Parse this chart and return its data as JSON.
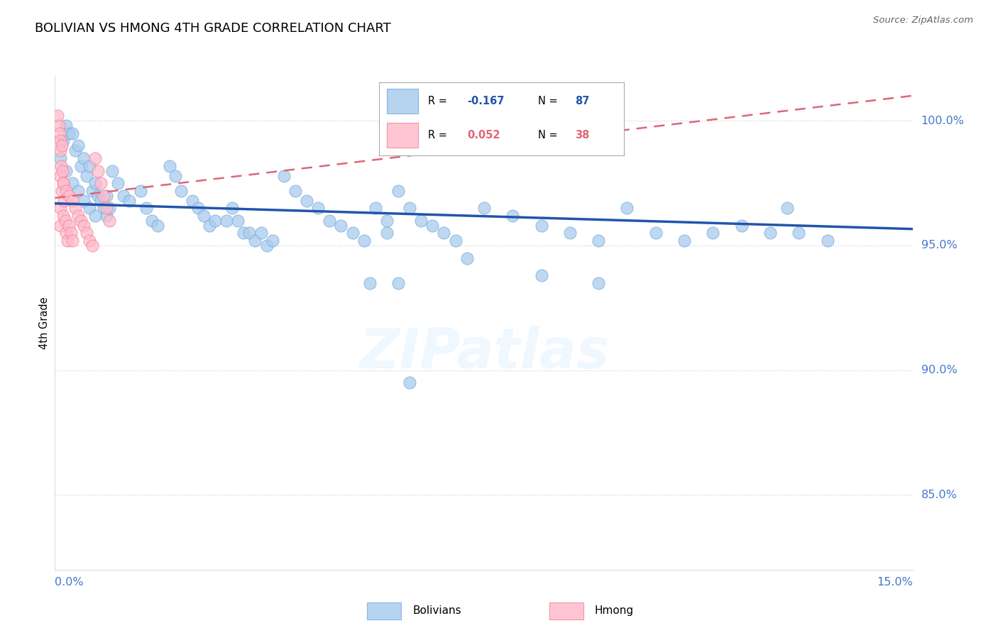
{
  "title": "BOLIVIAN VS HMONG 4TH GRADE CORRELATION CHART",
  "source": "Source: ZipAtlas.com",
  "ylabel": "4th Grade",
  "xlim": [
    0.0,
    15.0
  ],
  "ylim": [
    82.0,
    101.8
  ],
  "yticks": [
    85.0,
    90.0,
    95.0,
    100.0
  ],
  "ytick_labels": [
    "85.0%",
    "90.0%",
    "95.0%",
    "100.0%"
  ],
  "blue_R": -0.167,
  "blue_N": 87,
  "pink_R": 0.052,
  "pink_N": 38,
  "blue_color": "#AACCEE",
  "blue_edge": "#7AAEDD",
  "pink_color": "#FFBBCC",
  "pink_edge": "#EE8899",
  "blue_line_color": "#2255AA",
  "pink_line_color": "#DD6677",
  "blue_scatter_x": [
    0.1,
    0.15,
    0.2,
    0.2,
    0.25,
    0.3,
    0.3,
    0.35,
    0.4,
    0.4,
    0.45,
    0.5,
    0.5,
    0.55,
    0.6,
    0.6,
    0.65,
    0.7,
    0.7,
    0.75,
    0.8,
    0.85,
    0.9,
    0.9,
    0.95,
    1.0,
    1.1,
    1.2,
    1.3,
    1.5,
    1.6,
    1.7,
    1.8,
    2.0,
    2.1,
    2.2,
    2.4,
    2.5,
    2.6,
    2.7,
    2.8,
    3.0,
    3.1,
    3.2,
    3.3,
    3.4,
    3.5,
    3.6,
    3.7,
    3.8,
    4.0,
    4.2,
    4.4,
    4.6,
    4.8,
    5.0,
    5.2,
    5.4,
    5.6,
    5.8,
    6.0,
    6.2,
    6.4,
    6.6,
    6.8,
    7.0,
    7.5,
    8.0,
    8.5,
    9.0,
    9.5,
    10.0,
    10.5,
    11.0,
    11.5,
    12.0,
    12.5,
    12.8,
    13.0,
    13.5,
    9.5,
    6.2,
    5.8,
    6.0,
    8.5,
    7.2,
    5.5
  ],
  "blue_scatter_y": [
    98.5,
    99.2,
    99.8,
    98.0,
    99.5,
    99.5,
    97.5,
    98.8,
    99.0,
    97.2,
    98.2,
    98.5,
    96.8,
    97.8,
    98.2,
    96.5,
    97.2,
    97.5,
    96.2,
    97.0,
    96.8,
    96.5,
    97.0,
    96.2,
    96.5,
    98.0,
    97.5,
    97.0,
    96.8,
    97.2,
    96.5,
    96.0,
    95.8,
    98.2,
    97.8,
    97.2,
    96.8,
    96.5,
    96.2,
    95.8,
    96.0,
    96.0,
    96.5,
    96.0,
    95.5,
    95.5,
    95.2,
    95.5,
    95.0,
    95.2,
    97.8,
    97.2,
    96.8,
    96.5,
    96.0,
    95.8,
    95.5,
    95.2,
    96.5,
    96.0,
    97.2,
    96.5,
    96.0,
    95.8,
    95.5,
    95.2,
    96.5,
    96.2,
    95.8,
    95.5,
    95.2,
    96.5,
    95.5,
    95.2,
    95.5,
    95.8,
    95.5,
    96.5,
    95.5,
    95.2,
    93.5,
    89.5,
    95.5,
    93.5,
    93.8,
    94.5,
    93.5
  ],
  "pink_scatter_x": [
    0.05,
    0.07,
    0.08,
    0.09,
    0.1,
    0.1,
    0.1,
    0.1,
    0.11,
    0.12,
    0.12,
    0.13,
    0.14,
    0.15,
    0.15,
    0.16,
    0.18,
    0.2,
    0.2,
    0.22,
    0.25,
    0.25,
    0.28,
    0.3,
    0.3,
    0.35,
    0.4,
    0.45,
    0.5,
    0.55,
    0.6,
    0.65,
    0.7,
    0.75,
    0.8,
    0.85,
    0.9,
    0.95
  ],
  "pink_scatter_y": [
    100.2,
    99.8,
    99.5,
    99.2,
    98.8,
    97.8,
    96.5,
    95.8,
    98.2,
    99.0,
    97.2,
    98.0,
    97.5,
    97.5,
    96.2,
    96.8,
    96.0,
    97.2,
    95.5,
    95.2,
    97.0,
    95.8,
    95.5,
    96.8,
    95.2,
    96.5,
    96.2,
    96.0,
    95.8,
    95.5,
    95.2,
    95.0,
    98.5,
    98.0,
    97.5,
    97.0,
    96.5,
    96.0
  ]
}
